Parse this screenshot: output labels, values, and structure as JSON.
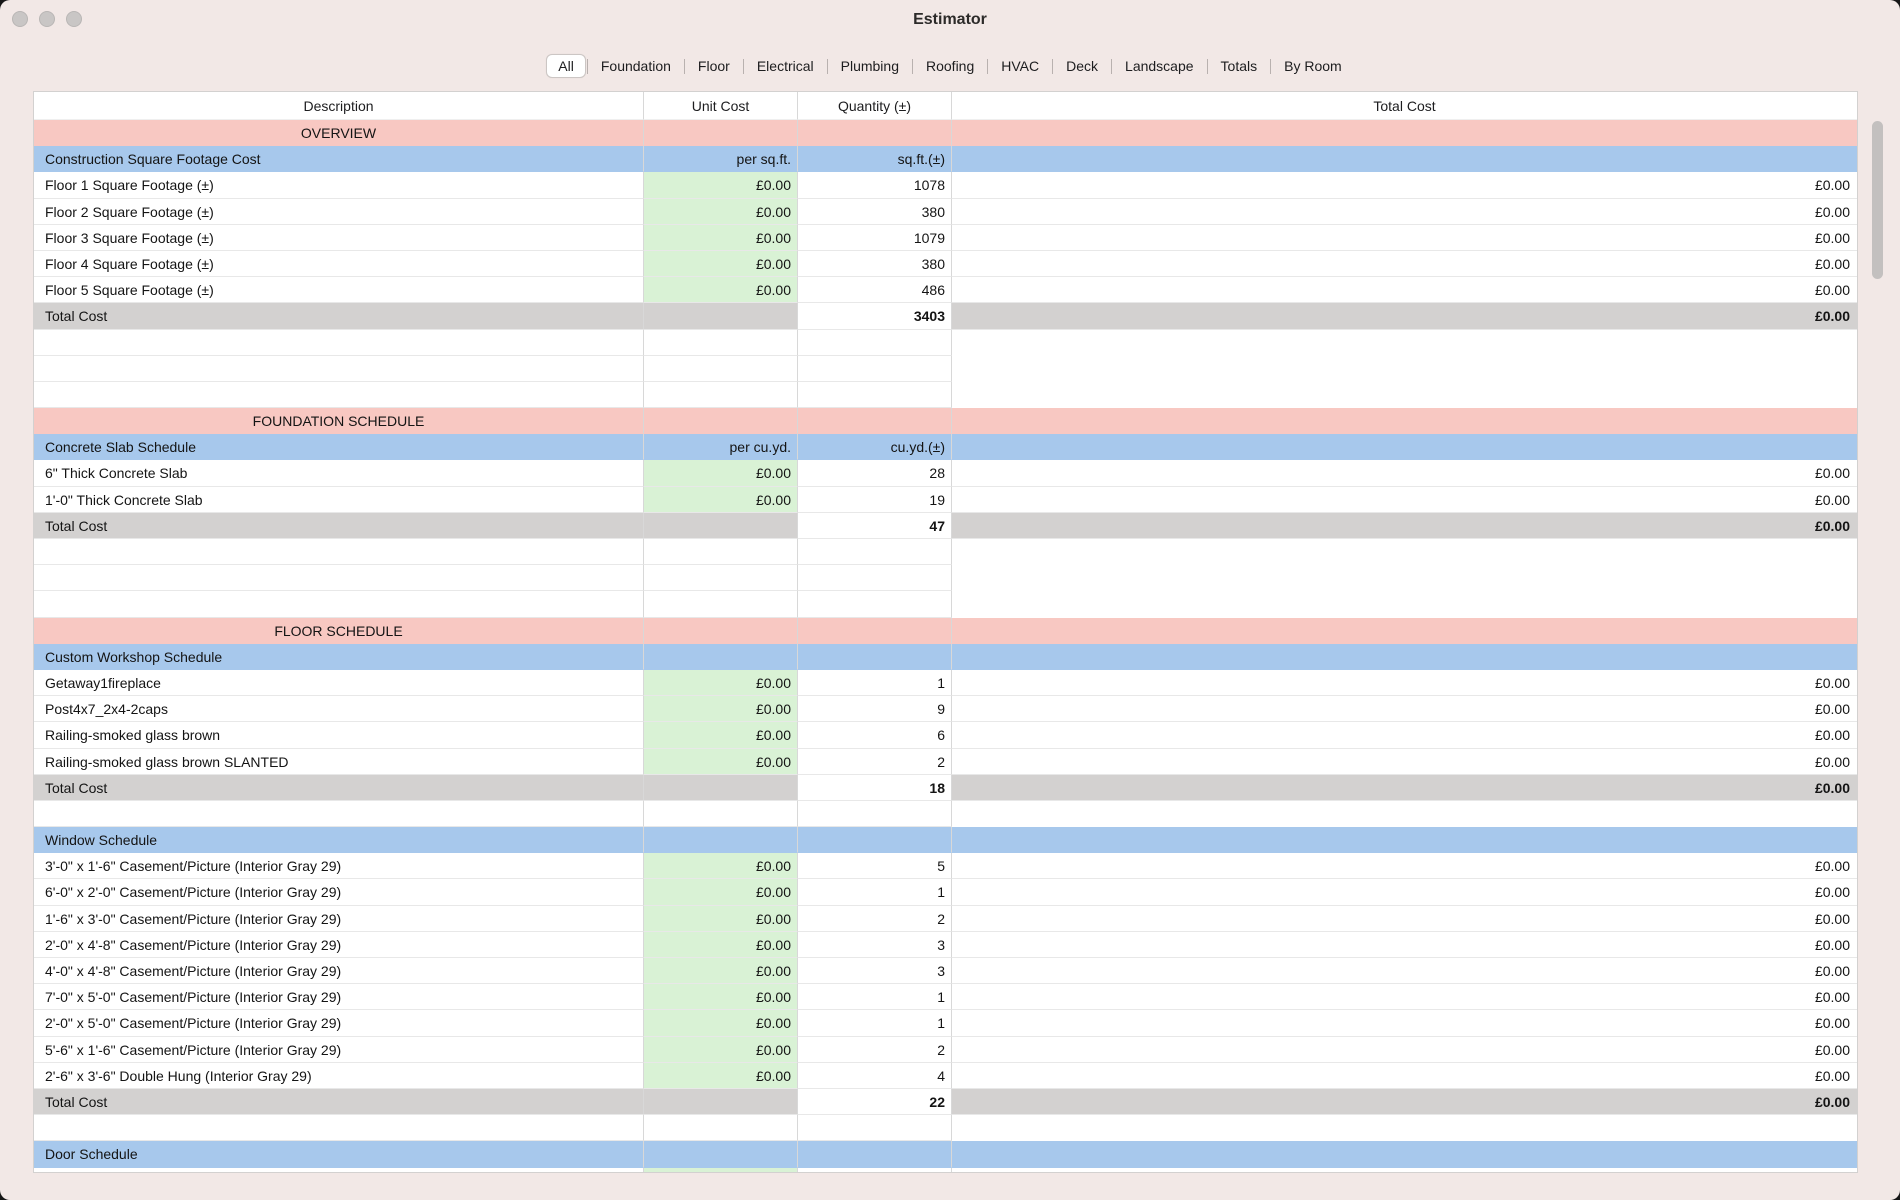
{
  "window": {
    "title": "Estimator"
  },
  "tabs": {
    "items": [
      "All",
      "Foundation",
      "Floor",
      "Electrical",
      "Plumbing",
      "Roofing",
      "HVAC",
      "Deck",
      "Landscape",
      "Totals",
      "By Room"
    ],
    "selected": "All"
  },
  "colors": {
    "window_bg": "#f2e8e6",
    "section_bg": "#f8c8c2",
    "subheader_bg": "#a7c8ec",
    "unit_bg": "#d9f2d5",
    "total_bg": "#d3d1d0"
  },
  "table": {
    "columns": [
      "Description",
      "Unit Cost",
      "Quantity (±)",
      "Total Cost"
    ],
    "rows": [
      {
        "type": "section",
        "desc": "OVERVIEW"
      },
      {
        "type": "subheader",
        "desc": "Construction Square Footage Cost",
        "unit": "per sq.ft.",
        "qty": "sq.ft.(±)"
      },
      {
        "type": "item",
        "desc": "Floor 1 Square Footage (±)",
        "unit": "£0.00",
        "qty": "1078",
        "total": "£0.00"
      },
      {
        "type": "item",
        "desc": "Floor 2 Square Footage (±)",
        "unit": "£0.00",
        "qty": "380",
        "total": "£0.00"
      },
      {
        "type": "item",
        "desc": "Floor 3 Square Footage (±)",
        "unit": "£0.00",
        "qty": "1079",
        "total": "£0.00"
      },
      {
        "type": "item",
        "desc": "Floor 4 Square Footage (±)",
        "unit": "£0.00",
        "qty": "380",
        "total": "£0.00"
      },
      {
        "type": "item",
        "desc": "Floor 5 Square Footage (±)",
        "unit": "£0.00",
        "qty": "486",
        "total": "£0.00"
      },
      {
        "type": "total",
        "desc": "Total Cost",
        "qty": "3403",
        "total": "£0.00"
      },
      {
        "type": "empty"
      },
      {
        "type": "empty"
      },
      {
        "type": "empty"
      },
      {
        "type": "section",
        "desc": "FOUNDATION SCHEDULE"
      },
      {
        "type": "subheader",
        "desc": "Concrete Slab Schedule",
        "unit": "per cu.yd.",
        "qty": "cu.yd.(±)"
      },
      {
        "type": "item",
        "desc": "6\" Thick Concrete Slab",
        "unit": "£0.00",
        "qty": "28",
        "total": "£0.00"
      },
      {
        "type": "item",
        "desc": "1'-0\" Thick Concrete Slab",
        "unit": "£0.00",
        "qty": "19",
        "total": "£0.00"
      },
      {
        "type": "total",
        "desc": "Total Cost",
        "qty": "47",
        "total": "£0.00"
      },
      {
        "type": "empty"
      },
      {
        "type": "empty"
      },
      {
        "type": "empty"
      },
      {
        "type": "section",
        "desc": "FLOOR SCHEDULE"
      },
      {
        "type": "subheader",
        "desc": "Custom Workshop Schedule"
      },
      {
        "type": "item",
        "desc": "Getaway1fireplace",
        "unit": "£0.00",
        "qty": "1",
        "total": "£0.00"
      },
      {
        "type": "item",
        "desc": "Post4x7_2x4-2caps",
        "unit": "£0.00",
        "qty": "9",
        "total": "£0.00"
      },
      {
        "type": "item",
        "desc": "Railing-smoked glass brown",
        "unit": "£0.00",
        "qty": "6",
        "total": "£0.00"
      },
      {
        "type": "item",
        "desc": "Railing-smoked glass brown SLANTED",
        "unit": "£0.00",
        "qty": "2",
        "total": "£0.00"
      },
      {
        "type": "total",
        "desc": "Total Cost",
        "qty": "18",
        "total": "£0.00"
      },
      {
        "type": "empty"
      },
      {
        "type": "subheader",
        "desc": "Window Schedule"
      },
      {
        "type": "item",
        "desc": "3'-0\" x 1'-6\" Casement/Picture (Interior Gray 29)",
        "unit": "£0.00",
        "qty": "5",
        "total": "£0.00"
      },
      {
        "type": "item",
        "desc": "6'-0\" x 2'-0\" Casement/Picture (Interior Gray 29)",
        "unit": "£0.00",
        "qty": "1",
        "total": "£0.00"
      },
      {
        "type": "item",
        "desc": "1'-6\" x 3'-0\" Casement/Picture (Interior Gray 29)",
        "unit": "£0.00",
        "qty": "2",
        "total": "£0.00"
      },
      {
        "type": "item",
        "desc": "2'-0\" x 4'-8\" Casement/Picture (Interior Gray 29)",
        "unit": "£0.00",
        "qty": "3",
        "total": "£0.00"
      },
      {
        "type": "item",
        "desc": "4'-0\" x 4'-8\" Casement/Picture (Interior Gray 29)",
        "unit": "£0.00",
        "qty": "3",
        "total": "£0.00"
      },
      {
        "type": "item",
        "desc": "7'-0\" x 5'-0\" Casement/Picture (Interior Gray 29)",
        "unit": "£0.00",
        "qty": "1",
        "total": "£0.00"
      },
      {
        "type": "item",
        "desc": "2'-0\" x 5'-0\" Casement/Picture (Interior Gray 29)",
        "unit": "£0.00",
        "qty": "1",
        "total": "£0.00"
      },
      {
        "type": "item",
        "desc": "5'-6\" x 1'-6\" Casement/Picture (Interior Gray 29)",
        "unit": "£0.00",
        "qty": "2",
        "total": "£0.00"
      },
      {
        "type": "item",
        "desc": "2'-6\" x 3'-6\" Double Hung (Interior Gray 29)",
        "unit": "£0.00",
        "qty": "4",
        "total": "£0.00"
      },
      {
        "type": "total",
        "desc": "Total Cost",
        "qty": "22",
        "total": "£0.00"
      },
      {
        "type": "empty"
      },
      {
        "type": "subheader",
        "desc": "Door Schedule"
      },
      {
        "type": "partial"
      }
    ]
  }
}
